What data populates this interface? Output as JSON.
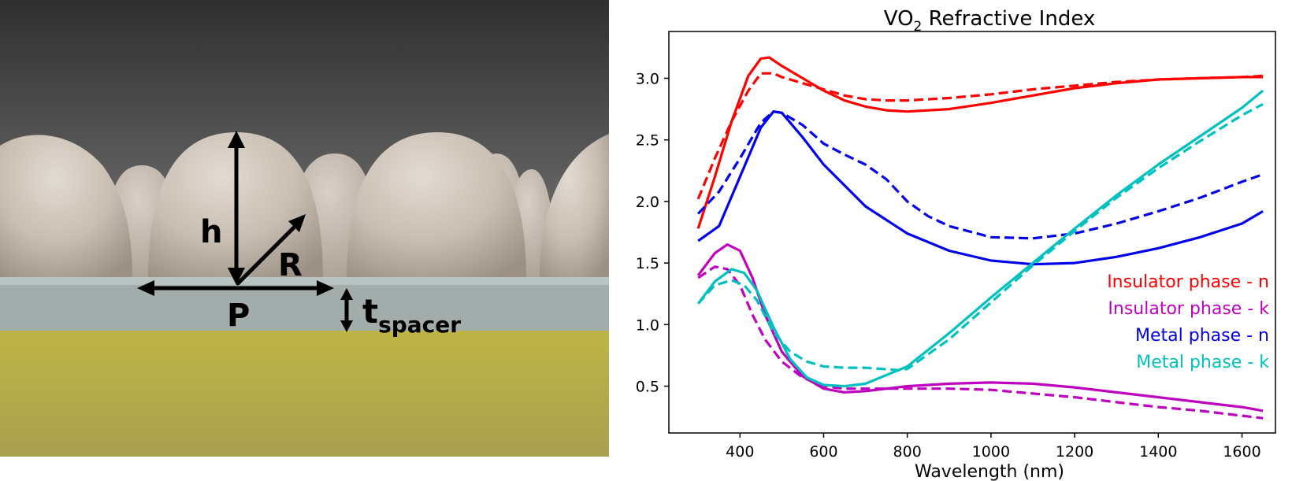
{
  "diagram": {
    "labels": {
      "h": "h",
      "R": "R",
      "P": "P",
      "t": "t",
      "t_sub": "spacer"
    }
  },
  "chart_data": {
    "type": "line",
    "title": "VO",
    "title_sub": "2",
    "title_rest": " Refractive Index",
    "xlabel": "Wavelength (nm)",
    "ylabel": "",
    "xlim": [
      230,
      1680
    ],
    "ylim": [
      0.12,
      3.38
    ],
    "xticks": [
      400,
      600,
      800,
      1000,
      1200,
      1400,
      1600
    ],
    "yticks": [
      0.5,
      1.0,
      1.5,
      2.0,
      2.5,
      3.0
    ],
    "xtick_labels": [
      "400",
      "600",
      "800",
      "1000",
      "1200",
      "1400",
      "1600"
    ],
    "ytick_labels": [
      "0.5",
      "1.0",
      "1.5",
      "2.0",
      "2.5",
      "3.0"
    ],
    "grid": false,
    "legend_placement": "right-middle",
    "legend": [
      {
        "label": "Insulator phase - n",
        "color": "#ff0000"
      },
      {
        "label": "Insulator phase - k",
        "color": "#c000c0"
      },
      {
        "label": "Metal phase - n",
        "color": "#0000ee"
      },
      {
        "label": "Metal phase - k",
        "color": "#00c0c0"
      }
    ],
    "series": [
      {
        "color": "#ff0000",
        "style": "solid",
        "x": [
          300,
          340,
          380,
          420,
          450,
          470,
          500,
          550,
          600,
          650,
          700,
          750,
          800,
          900,
          1000,
          1100,
          1200,
          1300,
          1400,
          1500,
          1600,
          1650
        ],
        "y": [
          1.78,
          2.2,
          2.65,
          3.02,
          3.16,
          3.17,
          3.1,
          3.0,
          2.9,
          2.82,
          2.77,
          2.74,
          2.73,
          2.75,
          2.8,
          2.86,
          2.92,
          2.96,
          2.99,
          3.0,
          3.01,
          3.01
        ]
      },
      {
        "color": "#ff0000",
        "style": "dashed",
        "x": [
          300,
          340,
          380,
          420,
          450,
          480,
          500,
          550,
          600,
          650,
          700,
          750,
          800,
          900,
          1000,
          1100,
          1200,
          1300,
          1400,
          1500,
          1600,
          1650
        ],
        "y": [
          2.02,
          2.35,
          2.65,
          2.9,
          3.04,
          3.04,
          3.01,
          2.96,
          2.91,
          2.86,
          2.83,
          2.82,
          2.82,
          2.84,
          2.87,
          2.91,
          2.94,
          2.97,
          2.99,
          3.0,
          3.01,
          3.02
        ]
      },
      {
        "color": "#0000ee",
        "style": "solid",
        "x": [
          300,
          350,
          400,
          450,
          480,
          500,
          550,
          600,
          700,
          800,
          900,
          1000,
          1100,
          1200,
          1300,
          1400,
          1500,
          1600,
          1650
        ],
        "y": [
          1.68,
          1.8,
          2.2,
          2.6,
          2.73,
          2.72,
          2.52,
          2.3,
          1.96,
          1.74,
          1.6,
          1.52,
          1.49,
          1.5,
          1.55,
          1.62,
          1.71,
          1.82,
          1.92
        ]
      },
      {
        "color": "#0000ee",
        "style": "dashed",
        "x": [
          300,
          350,
          400,
          450,
          480,
          500,
          550,
          600,
          650,
          700,
          750,
          800,
          850,
          900,
          1000,
          1100,
          1200,
          1300,
          1400,
          1500,
          1600,
          1650
        ],
        "y": [
          1.9,
          2.08,
          2.35,
          2.64,
          2.73,
          2.72,
          2.62,
          2.47,
          2.38,
          2.3,
          2.18,
          2.0,
          1.88,
          1.8,
          1.71,
          1.7,
          1.74,
          1.82,
          1.92,
          2.03,
          2.16,
          2.22
        ]
      },
      {
        "color": "#c000c0",
        "style": "solid",
        "x": [
          300,
          340,
          370,
          400,
          430,
          460,
          500,
          550,
          600,
          650,
          700,
          800,
          900,
          1000,
          1100,
          1200,
          1300,
          1400,
          1500,
          1600,
          1650
        ],
        "y": [
          1.4,
          1.58,
          1.65,
          1.6,
          1.38,
          1.08,
          0.78,
          0.58,
          0.48,
          0.45,
          0.46,
          0.5,
          0.52,
          0.53,
          0.52,
          0.49,
          0.45,
          0.41,
          0.37,
          0.33,
          0.3
        ]
      },
      {
        "color": "#c000c0",
        "style": "dashed",
        "x": [
          300,
          340,
          370,
          400,
          430,
          460,
          500,
          550,
          600,
          650,
          700,
          800,
          900,
          1000,
          1100,
          1200,
          1300,
          1400,
          1500,
          1600,
          1650
        ],
        "y": [
          1.38,
          1.47,
          1.45,
          1.32,
          1.08,
          0.88,
          0.7,
          0.57,
          0.5,
          0.48,
          0.48,
          0.48,
          0.48,
          0.47,
          0.44,
          0.41,
          0.37,
          0.33,
          0.3,
          0.26,
          0.24
        ]
      },
      {
        "color": "#00c0c0",
        "style": "solid",
        "x": [
          300,
          340,
          380,
          410,
          440,
          480,
          520,
          560,
          600,
          650,
          700,
          800,
          900,
          1000,
          1100,
          1200,
          1300,
          1400,
          1500,
          1600,
          1650
        ],
        "y": [
          1.17,
          1.35,
          1.45,
          1.42,
          1.28,
          0.98,
          0.72,
          0.57,
          0.51,
          0.5,
          0.52,
          0.66,
          0.93,
          1.22,
          1.5,
          1.78,
          2.05,
          2.3,
          2.53,
          2.76,
          2.9
        ]
      },
      {
        "color": "#00c0c0",
        "style": "dashed",
        "x": [
          300,
          340,
          380,
          410,
          440,
          480,
          520,
          560,
          600,
          650,
          700,
          780,
          800,
          900,
          1000,
          1100,
          1200,
          1300,
          1400,
          1500,
          1600,
          1650
        ],
        "y": [
          1.17,
          1.32,
          1.36,
          1.32,
          1.2,
          0.94,
          0.78,
          0.7,
          0.66,
          0.65,
          0.65,
          0.63,
          0.64,
          0.88,
          1.18,
          1.48,
          1.76,
          2.03,
          2.27,
          2.49,
          2.7,
          2.79
        ]
      }
    ]
  }
}
